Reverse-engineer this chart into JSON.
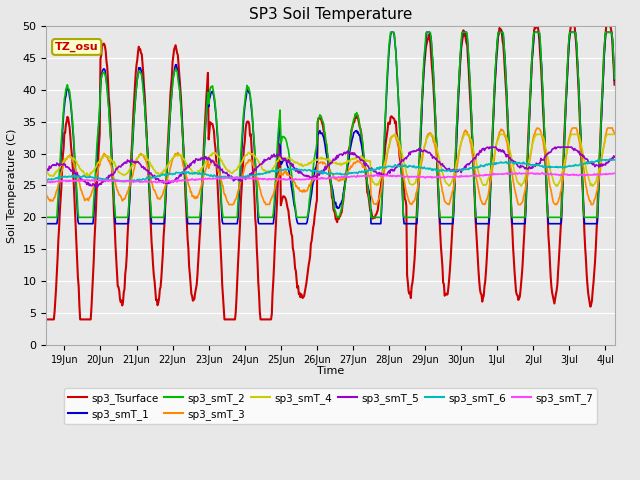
{
  "title": "SP3 Soil Temperature",
  "xlabel": "Time",
  "ylabel": "Soil Temperature (C)",
  "ylim": [
    0,
    50
  ],
  "yticks": [
    0,
    5,
    10,
    15,
    20,
    25,
    30,
    35,
    40,
    45,
    50
  ],
  "legend_entries": [
    "sp3_Tsurface",
    "sp3_smT_1",
    "sp3_smT_2",
    "sp3_smT_3",
    "sp3_smT_4",
    "sp3_smT_5",
    "sp3_smT_6",
    "sp3_smT_7"
  ],
  "colors": [
    "#cc0000",
    "#0000cc",
    "#00bb00",
    "#ff8800",
    "#cccc00",
    "#9900cc",
    "#00bbbb",
    "#ff44ff"
  ],
  "annotation_text": "TZ_osu",
  "annotation_color": "#cc0000",
  "annotation_bg": "#ffffcc",
  "annotation_border": "#aaaa00",
  "figsize": [
    6.4,
    4.8
  ],
  "dpi": 100
}
